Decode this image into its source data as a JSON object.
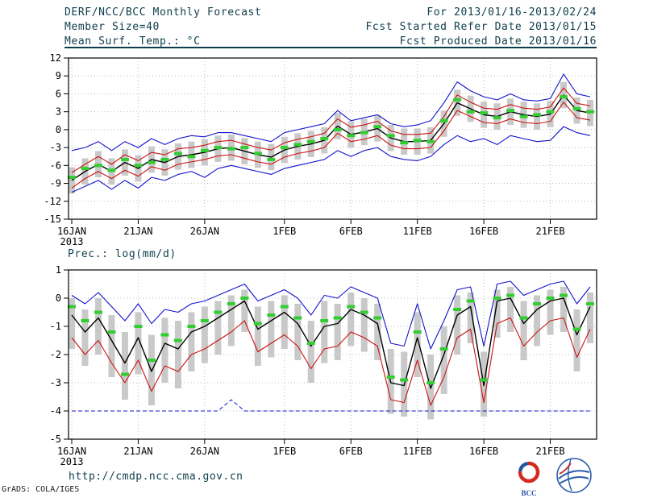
{
  "header": {
    "title": "DERF/NCC/BCC Monthly Forecast",
    "member_size": "Member Size=40",
    "variable_label": "Mean Surf. Temp.: °C",
    "valid_range": "For 2013/01/16-2013/02/24",
    "fcst_started": "Fcst Started Refer Date 2013/01/15",
    "fcst_produced": "Fcst Produced Date 2013/01/16"
  },
  "colors": {
    "accent": "#0e3d4d",
    "blue": "#1111cc",
    "red": "#cc1111",
    "black": "#000000",
    "green": "#33cc33",
    "bar_gray": "#c9c9c9"
  },
  "chart_data": [
    {
      "type": "line",
      "title": "Mean Surf. Temp.: °C",
      "ylabel": "",
      "ylim": [
        -15,
        12
      ],
      "yticks": [
        -15,
        -12,
        -9,
        -6,
        -3,
        0,
        3,
        6,
        9,
        12
      ],
      "n_points": 40,
      "x_year_label": "2013",
      "xticks": [
        {
          "pos": 0,
          "label": "16JAN"
        },
        {
          "pos": 5,
          "label": "21JAN"
        },
        {
          "pos": 10,
          "label": "26JAN"
        },
        {
          "pos": 16,
          "label": "1FEB"
        },
        {
          "pos": 21,
          "label": "6FEB"
        },
        {
          "pos": 26,
          "label": "11FEB"
        },
        {
          "pos": 31,
          "label": "16FEB"
        },
        {
          "pos": 36,
          "label": "21FEB"
        }
      ],
      "series": [
        {
          "name": "ensemble-max",
          "color": "#1111cc",
          "width": 1.1,
          "values": [
            -3.5,
            -3.0,
            -2.0,
            -3.5,
            -2.0,
            -3.0,
            -1.5,
            -2.5,
            -1.5,
            -1.0,
            -1.2,
            -0.5,
            -0.5,
            -1.0,
            -1.5,
            -2.0,
            -0.5,
            0.0,
            0.5,
            1.0,
            3.2,
            1.5,
            2.0,
            2.5,
            1.0,
            0.5,
            0.8,
            1.5,
            4.5,
            8.0,
            6.5,
            5.5,
            5.0,
            6.0,
            5.0,
            4.8,
            5.2,
            9.3,
            6.0,
            5.5
          ]
        },
        {
          "name": "upper-spread",
          "color": "#cc1111",
          "width": 1.1,
          "values": [
            -7.2,
            -5.8,
            -4.5,
            -5.8,
            -4.2,
            -5.2,
            -3.8,
            -4.2,
            -3.2,
            -3.0,
            -2.6,
            -2.0,
            -1.8,
            -2.4,
            -3.0,
            -3.4,
            -2.2,
            -1.6,
            -1.2,
            -0.6,
            1.8,
            0.4,
            0.8,
            1.4,
            -0.2,
            -0.8,
            -0.8,
            -0.6,
            2.2,
            5.8,
            4.6,
            3.6,
            3.4,
            4.2,
            3.6,
            3.4,
            3.8,
            7.0,
            4.4,
            4.0
          ]
        },
        {
          "name": "ensemble-mean",
          "color": "#000000",
          "width": 1.4,
          "values": [
            -8.5,
            -7.0,
            -5.8,
            -7.0,
            -5.5,
            -6.5,
            -5.0,
            -5.5,
            -4.5,
            -4.2,
            -3.8,
            -3.2,
            -3.0,
            -3.6,
            -4.2,
            -4.6,
            -3.4,
            -2.8,
            -2.4,
            -1.8,
            0.6,
            -0.8,
            -0.4,
            0.2,
            -1.4,
            -2.0,
            -2.0,
            -1.8,
            1.0,
            4.5,
            3.5,
            2.5,
            2.2,
            3.0,
            2.5,
            2.2,
            2.6,
            5.8,
            3.2,
            2.8
          ]
        },
        {
          "name": "lower-spread",
          "color": "#cc1111",
          "width": 1.1,
          "values": [
            -9.8,
            -8.2,
            -7.0,
            -8.2,
            -6.8,
            -7.8,
            -6.2,
            -6.8,
            -5.8,
            -5.4,
            -5.0,
            -4.4,
            -4.2,
            -4.8,
            -5.4,
            -5.8,
            -4.6,
            -4.0,
            -3.6,
            -3.0,
            -0.6,
            -2.0,
            -1.6,
            -1.0,
            -2.6,
            -3.2,
            -3.2,
            -3.0,
            -0.2,
            3.2,
            2.2,
            1.2,
            1.0,
            1.8,
            1.2,
            1.0,
            1.4,
            4.6,
            2.0,
            1.6
          ]
        },
        {
          "name": "ensemble-min",
          "color": "#1111cc",
          "width": 1.1,
          "values": [
            -10.5,
            -9.5,
            -8.5,
            -10.0,
            -8.5,
            -9.8,
            -8.0,
            -8.5,
            -7.5,
            -7.0,
            -8.0,
            -6.5,
            -6.0,
            -6.5,
            -7.0,
            -7.5,
            -6.5,
            -6.0,
            -5.5,
            -5.0,
            -3.5,
            -4.5,
            -3.5,
            -3.0,
            -4.5,
            -5.0,
            -5.2,
            -4.5,
            -2.5,
            -1.0,
            -2.0,
            -1.5,
            -2.5,
            -1.0,
            -1.5,
            -2.0,
            -1.8,
            0.5,
            -0.5,
            -1.0
          ]
        }
      ],
      "bars": {
        "name": "member-spread-bars",
        "color": "#c9c9c9",
        "top": [
          -6.3,
          -4.8,
          -3.6,
          -4.8,
          -3.3,
          -4.3,
          -2.8,
          -3.3,
          -2.3,
          -2.0,
          -1.6,
          -1.0,
          -0.8,
          -1.4,
          -2.0,
          -2.4,
          -1.2,
          -0.6,
          -0.2,
          0.4,
          2.8,
          1.4,
          1.8,
          2.4,
          0.8,
          0.2,
          0.2,
          0.4,
          3.2,
          6.7,
          5.7,
          4.7,
          4.4,
          5.2,
          4.7,
          4.4,
          4.8,
          8.0,
          5.4,
          5.0
        ],
        "bottom": [
          -10.7,
          -9.2,
          -8.0,
          -9.2,
          -7.7,
          -8.7,
          -7.2,
          -7.7,
          -6.7,
          -6.4,
          -6.0,
          -5.4,
          -5.2,
          -5.8,
          -6.4,
          -6.8,
          -5.6,
          -5.0,
          -4.6,
          -4.0,
          -1.6,
          -3.0,
          -2.6,
          -2.0,
          -3.6,
          -4.2,
          -4.2,
          -4.0,
          -1.2,
          2.3,
          1.3,
          0.3,
          0.0,
          0.8,
          0.3,
          0.0,
          0.4,
          3.6,
          1.0,
          0.6
        ]
      },
      "dashes": {
        "name": "daily-median-marks",
        "color": "#33cc33",
        "values": [
          -8.0,
          -6.5,
          -6.0,
          -6.8,
          -5.0,
          -6.0,
          -5.5,
          -5.0,
          -4.0,
          -4.5,
          -3.5,
          -3.0,
          -3.2,
          -3.0,
          -4.0,
          -5.0,
          -3.0,
          -2.5,
          -2.0,
          -1.5,
          0.0,
          -1.0,
          -0.5,
          0.5,
          -1.0,
          -2.2,
          -1.8,
          -2.0,
          1.5,
          5.0,
          3.0,
          2.8,
          2.0,
          3.2,
          2.2,
          2.5,
          3.0,
          5.5,
          3.5,
          3.0
        ]
      }
    },
    {
      "type": "line",
      "title": "Prec.: log(mm/d)",
      "ylabel": "",
      "ylim": [
        -5,
        1
      ],
      "yticks": [
        -5,
        -4,
        -3,
        -2,
        -1,
        0,
        1
      ],
      "n_points": 40,
      "x_year_label": "2013",
      "xticks": [
        {
          "pos": 0,
          "label": "16JAN"
        },
        {
          "pos": 5,
          "label": "21JAN"
        },
        {
          "pos": 10,
          "label": "26JAN"
        },
        {
          "pos": 16,
          "label": "1FEB"
        },
        {
          "pos": 21,
          "label": "6FEB"
        },
        {
          "pos": 26,
          "label": "11FEB"
        },
        {
          "pos": 31,
          "label": "16FEB"
        },
        {
          "pos": 36,
          "label": "21FEB"
        }
      ],
      "series": [
        {
          "name": "ensemble-max",
          "color": "#1111cc",
          "width": 1.1,
          "values": [
            0.1,
            -0.2,
            0.2,
            -0.3,
            -0.8,
            -0.2,
            -0.9,
            -0.4,
            -0.5,
            -0.2,
            -0.1,
            0.1,
            0.3,
            0.5,
            -0.1,
            0.1,
            0.3,
            0.0,
            -0.6,
            0.1,
            0.0,
            0.4,
            0.2,
            0.0,
            -1.6,
            -1.7,
            -0.2,
            -1.8,
            -0.8,
            0.3,
            0.4,
            -1.7,
            0.5,
            0.6,
            0.1,
            0.3,
            0.5,
            0.6,
            -0.2,
            0.4
          ]
        },
        {
          "name": "ensemble-mean",
          "color": "#000000",
          "width": 1.4,
          "values": [
            -0.6,
            -1.2,
            -0.7,
            -1.5,
            -2.3,
            -1.4,
            -2.6,
            -1.6,
            -1.8,
            -1.2,
            -1.0,
            -0.7,
            -0.4,
            -0.1,
            -1.1,
            -0.8,
            -0.5,
            -0.9,
            -1.7,
            -1.0,
            -0.9,
            -0.4,
            -0.6,
            -0.9,
            -3.0,
            -3.1,
            -1.4,
            -3.2,
            -2.0,
            -0.6,
            -0.3,
            -3.1,
            -0.1,
            0.0,
            -0.9,
            -0.4,
            -0.1,
            0.0,
            -1.3,
            -0.3
          ]
        },
        {
          "name": "lower-spread",
          "color": "#cc1111",
          "width": 1.1,
          "values": [
            -1.4,
            -2.0,
            -1.5,
            -2.3,
            -3.0,
            -2.2,
            -3.3,
            -2.4,
            -2.6,
            -2.0,
            -1.8,
            -1.5,
            -1.2,
            -0.8,
            -1.9,
            -1.6,
            -1.3,
            -1.7,
            -2.5,
            -1.8,
            -1.7,
            -1.2,
            -1.4,
            -1.7,
            -3.6,
            -3.7,
            -2.2,
            -3.8,
            -2.8,
            -1.4,
            -1.1,
            -3.7,
            -0.9,
            -0.7,
            -1.7,
            -1.2,
            -0.8,
            -0.7,
            -2.1,
            -1.1
          ]
        },
        {
          "name": "ensemble-min-floor",
          "color": "#1111cc",
          "width": 1.0,
          "dashed": true,
          "values": [
            -4,
            -4,
            -4,
            -4,
            -4,
            -4,
            -4,
            -4,
            -4,
            -4,
            -4,
            -4,
            -3.6,
            -4,
            -4,
            -4,
            -4,
            -4,
            -4,
            -4,
            -4,
            -4,
            -4,
            -4,
            -4,
            -4,
            -4,
            -4,
            -4,
            -4,
            -4,
            -4,
            -4,
            -4,
            -4,
            -4,
            -4,
            -4,
            -4,
            -4
          ]
        }
      ],
      "bars": {
        "name": "member-spread-bars",
        "color": "#c9c9c9",
        "top": [
          0.0,
          -0.4,
          0.0,
          -0.6,
          -1.2,
          -0.5,
          -1.3,
          -0.7,
          -0.8,
          -0.5,
          -0.3,
          -0.1,
          0.1,
          0.3,
          -0.3,
          -0.1,
          0.1,
          -0.2,
          -0.8,
          -0.1,
          -0.2,
          0.2,
          0.0,
          -0.2,
          -1.8,
          -1.9,
          -0.5,
          -2.0,
          -1.0,
          0.1,
          0.2,
          -1.9,
          0.3,
          0.4,
          -0.1,
          0.1,
          0.3,
          0.4,
          -0.4,
          0.2
        ],
        "bottom": [
          -1.8,
          -2.4,
          -2.0,
          -2.8,
          -3.6,
          -2.7,
          -3.8,
          -3.0,
          -3.2,
          -2.6,
          -2.3,
          -2.0,
          -1.7,
          -1.2,
          -2.4,
          -2.1,
          -1.8,
          -2.2,
          -3.0,
          -2.3,
          -2.2,
          -1.7,
          -1.9,
          -2.2,
          -4.1,
          -4.2,
          -2.8,
          -4.3,
          -3.4,
          -2.0,
          -1.6,
          -4.2,
          -1.4,
          -1.2,
          -2.2,
          -1.7,
          -1.3,
          -1.2,
          -2.6,
          -1.6
        ]
      },
      "dashes": {
        "name": "daily-median-marks",
        "color": "#33cc33",
        "values": [
          -0.3,
          -0.8,
          -0.5,
          -1.2,
          -2.7,
          -1.0,
          -2.2,
          -1.3,
          -1.5,
          -1.0,
          -0.8,
          -0.5,
          -0.2,
          0.0,
          -0.9,
          -0.6,
          -0.3,
          -0.7,
          -1.6,
          -0.8,
          -0.7,
          -0.3,
          -0.5,
          -0.7,
          -2.8,
          -2.9,
          -1.2,
          -3.0,
          -1.8,
          -0.4,
          -0.1,
          -2.9,
          0.0,
          0.1,
          -0.7,
          -0.2,
          0.0,
          0.1,
          -1.1,
          -0.2
        ]
      }
    }
  ],
  "footer": {
    "url": "http://cmdp.ncc.cma.gov.cn",
    "credit": "GrADS: COLA/IGES",
    "bcc_logo_label": "BCC"
  },
  "icons": {
    "left_logo": "bcc-swirl-logo",
    "right_logo": "cma-globe-logo"
  }
}
